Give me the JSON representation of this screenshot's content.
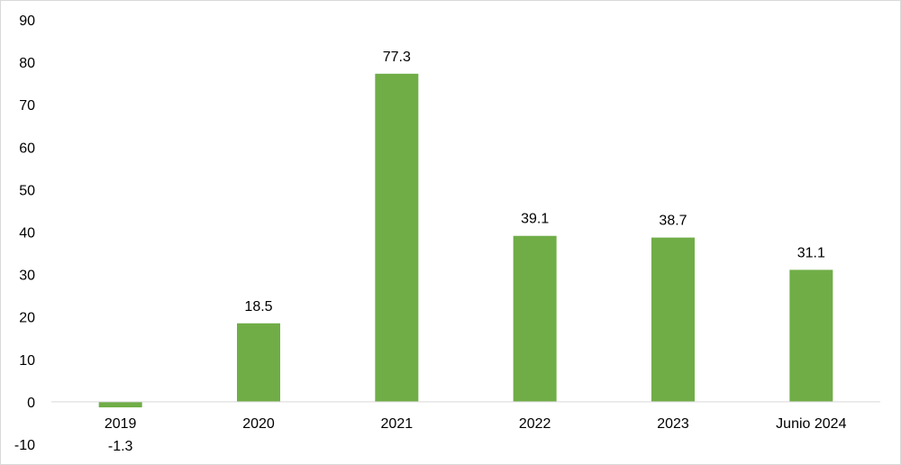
{
  "chart_data": {
    "type": "bar",
    "title": "",
    "xlabel": "",
    "ylabel": "",
    "categories": [
      "2019",
      "2020",
      "2021",
      "2022",
      "2023",
      "Junio 2024"
    ],
    "values": [
      -1.3,
      18.5,
      77.3,
      39.1,
      38.7,
      31.1
    ],
    "data_labels": [
      "-1.3",
      "18.5",
      "77.3",
      "39.1",
      "38.7",
      "31.1"
    ],
    "ylim": [
      -10,
      90
    ],
    "yticks": [
      -10,
      0,
      10,
      20,
      30,
      40,
      50,
      60,
      70,
      80,
      90
    ],
    "ytick_labels": [
      "-10",
      "0",
      "10",
      "20",
      "30",
      "40",
      "50",
      "60",
      "70",
      "80",
      "90"
    ],
    "grid": false,
    "legend": "none",
    "bar_color": "#70ad47",
    "axis_color": "#d9d9d9"
  }
}
